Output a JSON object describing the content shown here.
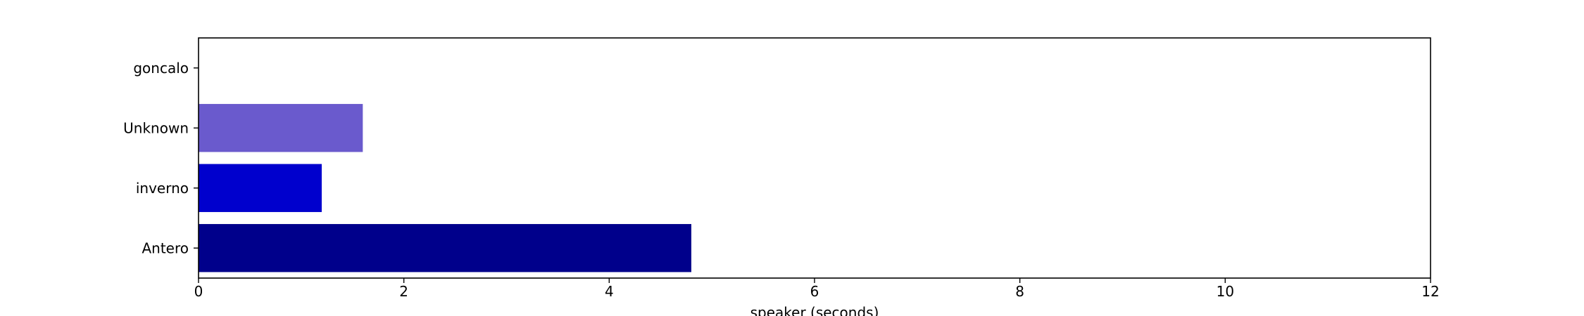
{
  "chart_data": {
    "type": "bar",
    "orientation": "horizontal",
    "categories": [
      "Antero",
      "inverno",
      "Unknown",
      "goncalo"
    ],
    "values": [
      4.8,
      1.2,
      1.6,
      0
    ],
    "colors": [
      "#00008b",
      "#0000cd",
      "#6a5acd",
      "#483d8b"
    ],
    "xlabel": "speaker (seconds)",
    "ylabel": "",
    "title": "",
    "xlim": [
      0,
      12
    ],
    "xticks": [
      0,
      2,
      4,
      6,
      8,
      10,
      12
    ],
    "grid": false,
    "legend": false
  }
}
